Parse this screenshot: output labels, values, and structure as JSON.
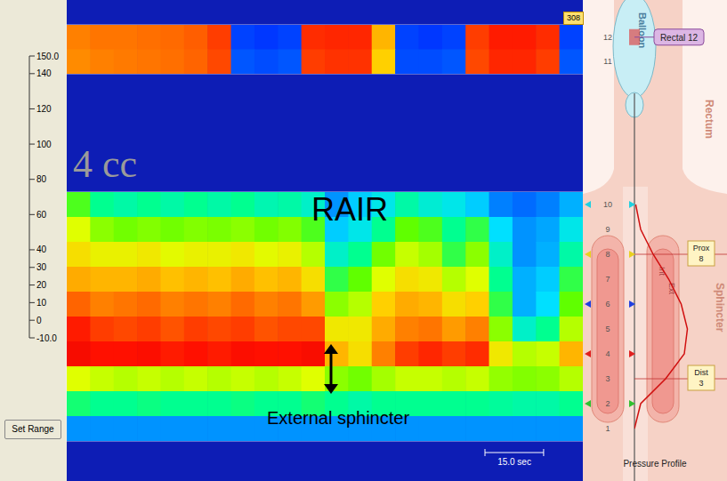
{
  "chart_data": {
    "type": "heatmap",
    "x": [
      0,
      6,
      12,
      18,
      24,
      30,
      36,
      42,
      48,
      54,
      60,
      66,
      72,
      78,
      84,
      90,
      96,
      102,
      108,
      114,
      120,
      126
    ],
    "xlim": [
      0,
      132
    ],
    "xticks": [
      17.5,
      35,
      52.5,
      70,
      87.5,
      105,
      122.5
    ],
    "tick_labels": false,
    "grid": true,
    "rectal": {
      "channels": [
        12,
        11
      ],
      "ylim": [
        10.5,
        12.5
      ],
      "cells": [
        [
          80,
          82,
          82,
          83,
          84,
          86,
          92,
          4,
          3,
          4,
          95,
          96,
          96,
          70,
          4,
          3,
          4,
          92,
          98,
          98,
          95,
          4
        ],
        [
          78,
          80,
          81,
          82,
          83,
          85,
          90,
          6,
          5,
          6,
          92,
          94,
          94,
          65,
          5,
          5,
          6,
          90,
          96,
          96,
          92,
          6
        ]
      ]
    },
    "sphincter": {
      "channels": [
        10,
        9,
        8,
        7,
        6,
        5,
        4,
        3,
        2,
        1
      ],
      "ylim": [
        0.5,
        10.5
      ],
      "cells": [
        [
          38,
          30,
          28,
          30,
          28,
          30,
          28,
          30,
          27,
          28,
          25,
          12,
          18,
          22,
          28,
          24,
          22,
          18,
          10,
          8,
          10,
          15
        ],
        [
          55,
          45,
          42,
          44,
          42,
          44,
          43,
          45,
          42,
          44,
          38,
          18,
          22,
          30,
          40,
          38,
          30,
          35,
          20,
          12,
          14,
          22
        ],
        [
          62,
          58,
          58,
          60,
          56,
          58,
          58,
          60,
          56,
          58,
          50,
          25,
          30,
          42,
          52,
          48,
          35,
          45,
          25,
          12,
          15,
          28
        ],
        [
          72,
          70,
          70,
          72,
          68,
          70,
          68,
          72,
          68,
          70,
          62,
          35,
          40,
          55,
          62,
          60,
          50,
          55,
          30,
          15,
          18,
          35
        ],
        [
          85,
          80,
          82,
          84,
          80,
          82,
          80,
          84,
          80,
          82,
          75,
          45,
          50,
          65,
          72,
          70,
          62,
          65,
          35,
          15,
          20,
          40
        ],
        [
          98,
          92,
          90,
          92,
          88,
          92,
          90,
          92,
          88,
          90,
          90,
          60,
          60,
          72,
          80,
          82,
          75,
          80,
          45,
          25,
          30,
          50
        ],
        [
          105,
          100,
          100,
          102,
          98,
          100,
          98,
          102,
          100,
          100,
          104,
          70,
          62,
          80,
          92,
          96,
          92,
          95,
          60,
          50,
          52,
          70
        ],
        [
          55,
          52,
          50,
          52,
          50,
          52,
          50,
          52,
          50,
          52,
          55,
          45,
          42,
          48,
          52,
          52,
          50,
          52,
          46,
          44,
          45,
          50
        ],
        [
          32,
          30,
          30,
          31,
          30,
          30,
          30,
          31,
          30,
          30,
          32,
          30,
          28,
          30,
          30,
          30,
          30,
          30,
          29,
          28,
          28,
          30
        ],
        [
          12,
          12,
          12,
          12,
          12,
          12,
          12,
          12,
          12,
          12,
          12,
          12,
          12,
          12,
          12,
          12,
          12,
          12,
          12,
          12,
          12,
          12
        ]
      ]
    },
    "colorbar": {
      "range": [
        -10,
        150
      ],
      "ticks": [
        {
          "value": 150,
          "label": "150.0"
        },
        140,
        120,
        100,
        80,
        60,
        40,
        30,
        20,
        10,
        0,
        {
          "value": -10,
          "label": "-10.0"
        }
      ]
    },
    "volume_label": "4 cc",
    "annotations": {
      "rair": "RAIR",
      "external": "External sphincter"
    },
    "scale_bar": {
      "value": 15,
      "label": "15.0 sec"
    },
    "marker_tag": "308",
    "button": "Set Range",
    "diagram": {
      "title": "Pressure Profile",
      "labels": {
        "balloon": "Balloon",
        "rectum": "Rectum",
        "sphincter": "Sphincter",
        "internal": "Int",
        "external": "Ext"
      },
      "tags": {
        "rectal": "Rectal 12",
        "prox": "Prox 8",
        "dist": "Dist 3"
      },
      "pressure_profile": {
        "channels": [
          10,
          9,
          8,
          7,
          6,
          5,
          4,
          3,
          2,
          1
        ],
        "values": [
          2,
          10,
          30,
          55,
          75,
          85,
          80,
          50,
          10,
          0
        ],
        "xlim": [
          0,
          100
        ]
      }
    }
  }
}
